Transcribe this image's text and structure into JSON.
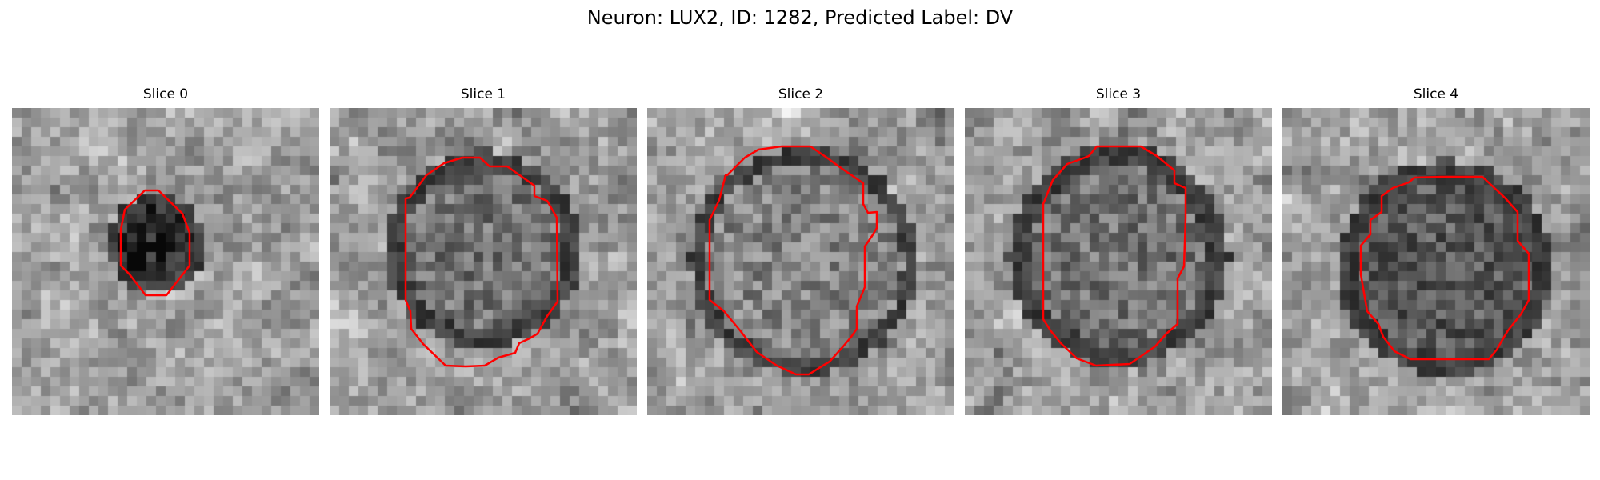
{
  "figure": {
    "title": "Neuron: LUX2, ID: 1282, Predicted Label: DV"
  },
  "panels": [
    {
      "title": "Slice 0",
      "outline_color": "#ff0000"
    },
    {
      "title": "Slice 1",
      "outline_color": "#ff0000"
    },
    {
      "title": "Slice 2",
      "outline_color": "#ff0000"
    },
    {
      "title": "Slice 3",
      "outline_color": "#ff0000"
    },
    {
      "title": "Slice 4",
      "outline_color": "#ff0000"
    }
  ]
}
